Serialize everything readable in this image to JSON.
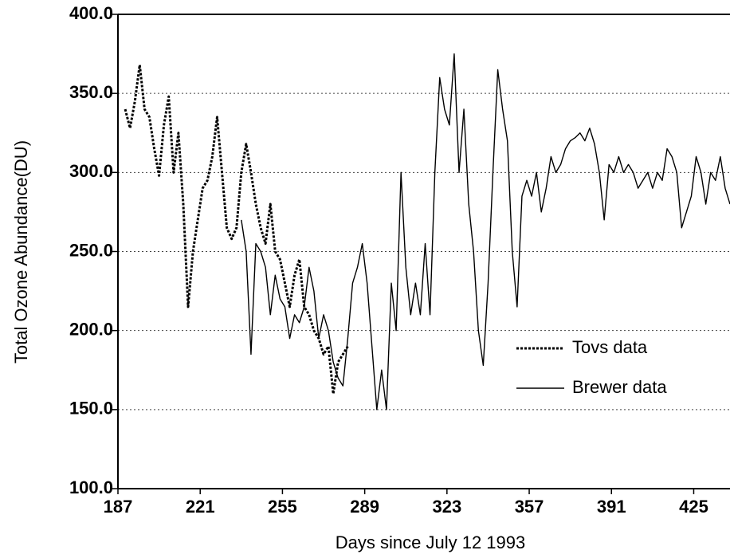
{
  "chart_data": {
    "type": "line",
    "xlabel": "Days since July 12 1993",
    "ylabel": "Total Ozone Abundance(DU)",
    "xlim": [
      187,
      440
    ],
    "xticks": [
      187,
      221,
      255,
      289,
      323,
      357,
      391,
      425
    ],
    "ylim": [
      100,
      400
    ],
    "yticks": [
      {
        "value": 100,
        "label": "100.0"
      },
      {
        "value": 150,
        "label": "150.0"
      },
      {
        "value": 200,
        "label": "200.0"
      },
      {
        "value": 250,
        "label": "250.0"
      },
      {
        "value": 300,
        "label": "300.0"
      },
      {
        "value": 350,
        "label": "350.0"
      },
      {
        "value": 400,
        "label": "400.0"
      }
    ],
    "grid": true,
    "legend": "lower right",
    "series": [
      {
        "name": "Tovs data",
        "color": "#000000",
        "line_style": "dotted",
        "x": [
          190,
          192,
          194,
          196,
          198,
          200,
          202,
          204,
          206,
          208,
          210,
          212,
          214,
          216,
          218,
          220,
          222,
          224,
          226,
          228,
          230,
          232,
          234,
          236,
          238,
          240,
          242,
          244,
          246,
          248,
          250,
          252,
          254,
          256,
          258,
          260,
          262,
          264,
          266,
          268,
          270,
          272,
          274,
          276,
          278,
          280,
          282
        ],
        "values": [
          340,
          328,
          345,
          368,
          340,
          335,
          315,
          298,
          330,
          348,
          300,
          325,
          280,
          215,
          250,
          270,
          290,
          295,
          310,
          335,
          300,
          265,
          258,
          265,
          300,
          318,
          300,
          280,
          265,
          255,
          280,
          250,
          245,
          230,
          215,
          235,
          245,
          215,
          210,
          200,
          195,
          185,
          190,
          160,
          180,
          185,
          190
        ]
      },
      {
        "name": "Brewer data",
        "color": "#000000",
        "line_style": "solid",
        "x": [
          238,
          240,
          242,
          244,
          246,
          248,
          250,
          252,
          254,
          256,
          258,
          260,
          262,
          264,
          266,
          268,
          270,
          272,
          274,
          276,
          278,
          280,
          282,
          284,
          286,
          288,
          290,
          292,
          294,
          296,
          298,
          300,
          302,
          304,
          306,
          308,
          310,
          312,
          314,
          316,
          318,
          320,
          322,
          324,
          326,
          328,
          330,
          332,
          334,
          336,
          338,
          340,
          342,
          344,
          346,
          348,
          350,
          352,
          354,
          356,
          358,
          360,
          362,
          364,
          366,
          368,
          370,
          372,
          374,
          376,
          378,
          380,
          382,
          384,
          386,
          388,
          390,
          392,
          394,
          396,
          398,
          400,
          402,
          404,
          406,
          408,
          410,
          412,
          414,
          416,
          418,
          420,
          422,
          424,
          426,
          428,
          430,
          432,
          434,
          436,
          438,
          440
        ],
        "values": [
          270,
          250,
          185,
          255,
          250,
          240,
          210,
          235,
          220,
          215,
          195,
          210,
          205,
          215,
          240,
          225,
          195,
          210,
          200,
          180,
          170,
          165,
          195,
          230,
          240,
          255,
          230,
          190,
          150,
          175,
          150,
          230,
          200,
          300,
          240,
          210,
          230,
          210,
          255,
          210,
          300,
          360,
          340,
          330,
          375,
          300,
          340,
          280,
          250,
          200,
          178,
          230,
          300,
          365,
          340,
          320,
          250,
          215,
          285,
          295,
          285,
          300,
          275,
          290,
          310,
          300,
          305,
          315,
          320,
          322,
          325,
          320,
          328,
          318,
          300,
          270,
          305,
          300,
          310,
          300,
          305,
          300,
          290,
          295,
          300,
          290,
          300,
          295,
          315,
          310,
          300,
          265,
          275,
          285,
          310,
          300,
          280,
          300,
          295,
          310,
          290,
          280
        ]
      }
    ]
  }
}
